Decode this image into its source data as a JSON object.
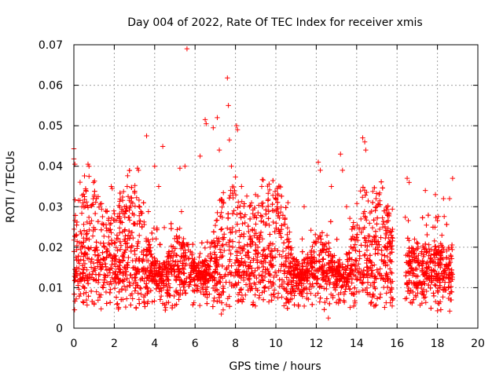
{
  "chart_data": {
    "type": "scatter",
    "title": "Day 004 of 2022, Rate Of TEC Index for receiver xmis",
    "xlabel": "GPS time / hours",
    "ylabel": "ROTI / TECUs",
    "xlim": [
      0,
      20
    ],
    "ylim": [
      0,
      0.07
    ],
    "x_ticks": [
      0,
      2,
      4,
      6,
      8,
      10,
      12,
      14,
      16,
      18,
      20
    ],
    "y_ticks": [
      0,
      0.01,
      0.02,
      0.03,
      0.04,
      0.05,
      0.06,
      0.07
    ],
    "x_tick_labels": [
      "0",
      "2",
      "4",
      "6",
      "8",
      "10",
      "12",
      "14",
      "16",
      "18",
      "20"
    ],
    "y_tick_labels": [
      "0",
      "0.01",
      "0.02",
      "0.03",
      "0.04",
      "0.05",
      "0.06",
      "0.07"
    ],
    "grid": true,
    "marker": "+",
    "color": "#ff0000",
    "data_gap_hours": [
      15.8,
      16.4
    ],
    "series": [
      {
        "points": [
          [
            0.0,
            0.0443
          ],
          [
            0.0,
            0.0418
          ],
          [
            0.05,
            0.0405
          ],
          [
            0.05,
            0.0227
          ],
          [
            0.1,
            0.0175
          ],
          [
            0.7,
            0.0405
          ],
          [
            0.75,
            0.04
          ],
          [
            0.75,
            0.0375
          ],
          [
            1.2,
            0.0325
          ],
          [
            1.85,
            0.035
          ],
          [
            1.9,
            0.0345
          ],
          [
            2.5,
            0.03
          ],
          [
            3.15,
            0.0395
          ],
          [
            3.2,
            0.039
          ],
          [
            3.6,
            0.0475
          ],
          [
            4.0,
            0.04
          ],
          [
            4.4,
            0.0449
          ],
          [
            4.2,
            0.035
          ],
          [
            5.25,
            0.0395
          ],
          [
            5.5,
            0.04
          ],
          [
            5.6,
            0.069
          ],
          [
            6.25,
            0.0425
          ],
          [
            6.5,
            0.0515
          ],
          [
            6.55,
            0.0505
          ],
          [
            6.9,
            0.0495
          ],
          [
            7.1,
            0.052
          ],
          [
            7.2,
            0.044
          ],
          [
            7.6,
            0.0618
          ],
          [
            7.65,
            0.055
          ],
          [
            7.7,
            0.0465
          ],
          [
            7.8,
            0.04
          ],
          [
            8.05,
            0.05
          ],
          [
            8.1,
            0.049
          ],
          [
            8.3,
            0.035
          ],
          [
            8.7,
            0.03
          ],
          [
            9.3,
            0.035
          ],
          [
            10.0,
            0.032
          ],
          [
            10.6,
            0.031
          ],
          [
            11.4,
            0.03
          ],
          [
            12.1,
            0.041
          ],
          [
            12.2,
            0.039
          ],
          [
            12.75,
            0.035
          ],
          [
            13.2,
            0.043
          ],
          [
            13.3,
            0.039
          ],
          [
            13.5,
            0.03
          ],
          [
            14.3,
            0.047
          ],
          [
            14.4,
            0.046
          ],
          [
            14.45,
            0.044
          ],
          [
            15.0,
            0.03
          ],
          [
            15.4,
            0.025
          ],
          [
            16.5,
            0.037
          ],
          [
            16.6,
            0.036
          ],
          [
            17.4,
            0.034
          ],
          [
            17.9,
            0.033
          ],
          [
            18.3,
            0.032
          ],
          [
            18.6,
            0.032
          ],
          [
            18.75,
            0.037
          ],
          [
            18.7,
            0.02
          ],
          [
            12.6,
            0.0025
          ],
          [
            7.3,
            0.0035
          ]
        ]
      }
    ]
  }
}
